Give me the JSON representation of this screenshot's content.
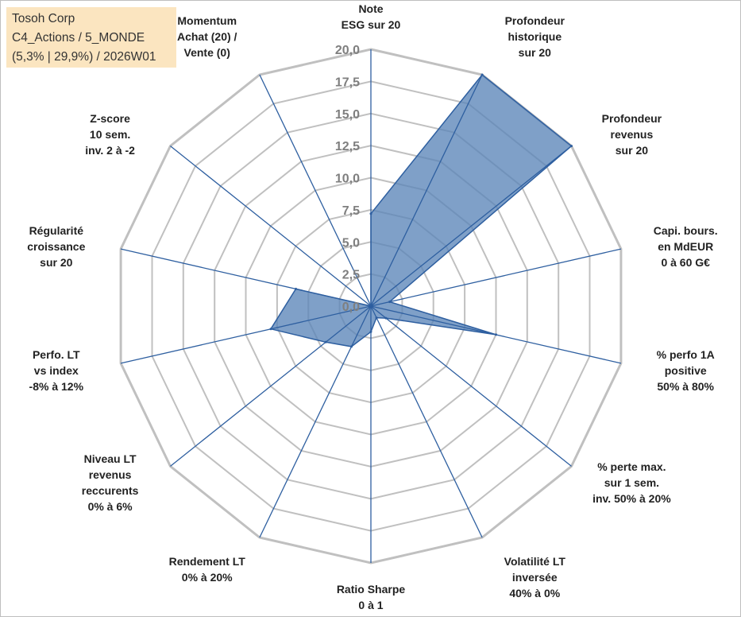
{
  "info": {
    "line1": "Tosoh Corp",
    "line2": "C4_Actions / 5_MONDE",
    "line3": "(5,3% | 29,9%) / 2026W01"
  },
  "chart_data": {
    "type": "radar",
    "rmax": 20,
    "ticks": [
      "0,0",
      "2,5",
      "5,0",
      "7,5",
      "10,0",
      "12,5",
      "15,0",
      "17,5",
      "20,0"
    ],
    "axes": [
      [
        "Note",
        "ESG sur 20"
      ],
      [
        "Profondeur",
        "historique",
        "sur 20"
      ],
      [
        "Profondeur",
        "revenus",
        "sur 20"
      ],
      [
        "Capi. bours.",
        "en MdEUR",
        "0 à 60 G€"
      ],
      [
        "% perfo 1A",
        "positive",
        "50% à 80%"
      ],
      [
        "% perte max.",
        "sur 1 sem.",
        "inv. 50% à 20%"
      ],
      [
        "Volatilité LT",
        "inversée",
        "40% à 0%"
      ],
      [
        "Ratio Sharpe",
        "0 à 1"
      ],
      [
        "Rendement LT",
        "0% à 20%"
      ],
      [
        "Niveau LT",
        "revenus",
        "reccurents",
        "0% à 6%"
      ],
      [
        "Perfo. LT",
        "vs index",
        "-8% à 12%"
      ],
      [
        "Régularité",
        "croissance",
        "sur 20"
      ],
      [
        "Z-score",
        "10 sem.",
        "inv. 2 à -2"
      ],
      [
        "Momentum",
        "Achat (20) /",
        "Vente (0)"
      ]
    ],
    "values": [
      7.2,
      20,
      20,
      1.5,
      10,
      1.5,
      1.0,
      2.0,
      3.5,
      4.5,
      8.0,
      6.0,
      0,
      0
    ],
    "colors": {
      "fill": "#5b85b8",
      "stroke": "#2e5fa0",
      "axis": "#2e5fa0",
      "grid": "#c0c0c0",
      "tick": "#7f7f7f"
    }
  }
}
